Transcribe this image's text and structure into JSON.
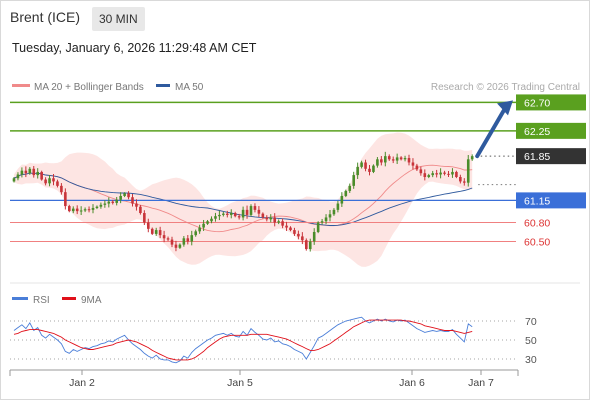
{
  "header": {
    "instrument": "Brent (ICE)",
    "timeframe": "30 MIN",
    "datetime": "Tuesday, January 6, 2026 11:29:48 AM CET"
  },
  "legend": {
    "ma20": "MA 20 + Bollinger Bands",
    "ma50": "MA 50",
    "credit": "Research © 2026 Trading Central",
    "rsi": "RSI",
    "ma9": "9MA"
  },
  "colors": {
    "bollinger_fill": "#fde0de",
    "ma20_line": "#f08a8a",
    "ma50_line": "#2f5a9e",
    "resistance": "#5aa01f",
    "support_blue": "#3a6fd8",
    "support_red": "#f08080",
    "price_box": "#333333",
    "rsi_line": "#4a7ed8",
    "rsi_ma": "#e0101a",
    "candle_up": "#4a8c2a",
    "candle_down": "#c8343a"
  },
  "chart_data": [
    {
      "type": "candlestick",
      "x_ticks": [
        "Jan 2",
        "Jan 5",
        "Jan 6",
        "Jan 7"
      ],
      "y_range": [
        60.27,
        62.77
      ],
      "levels": [
        {
          "value": 62.7,
          "label": "62.70",
          "kind": "resistance"
        },
        {
          "value": 62.25,
          "label": "62.25",
          "kind": "resistance"
        },
        {
          "value": 61.85,
          "label": "61.85",
          "kind": "last-price"
        },
        {
          "value": 61.15,
          "label": "61.15",
          "kind": "support"
        },
        {
          "value": 60.8,
          "label": "60.80",
          "kind": "support"
        },
        {
          "value": 60.5,
          "label": "60.50",
          "kind": "support"
        }
      ],
      "close": [
        61.5,
        61.56,
        61.62,
        61.58,
        61.65,
        61.55,
        61.6,
        61.48,
        61.42,
        61.5,
        61.45,
        61.38,
        61.28,
        61.06,
        60.98,
        61.02,
        60.98,
        60.99,
        61.01,
        61.0,
        61.03,
        61.05,
        61.08,
        61.1,
        61.13,
        61.11,
        61.16,
        61.22,
        61.26,
        61.2,
        61.1,
        61.05,
        60.95,
        60.8,
        60.7,
        60.62,
        60.68,
        60.6,
        60.55,
        60.53,
        60.45,
        60.4,
        60.45,
        60.55,
        60.5,
        60.6,
        60.66,
        60.72,
        60.78,
        60.82,
        60.86,
        60.9,
        60.92,
        60.94,
        60.92,
        60.95,
        60.9,
        60.88,
        61.0,
        60.92,
        61.06,
        61.0,
        60.94,
        60.88,
        60.85,
        60.88,
        60.8,
        60.82,
        60.75,
        60.72,
        60.68,
        60.62,
        60.58,
        60.52,
        60.38,
        60.5,
        60.65,
        60.8,
        60.82,
        60.88,
        60.93,
        61.0,
        61.1,
        61.22,
        61.3,
        61.38,
        61.55,
        61.68,
        61.75,
        61.65,
        61.6,
        61.7,
        61.8,
        61.75,
        61.85,
        61.8,
        61.78,
        61.83,
        61.8,
        61.82,
        61.75,
        61.7,
        61.64,
        61.58,
        61.52,
        61.55,
        61.58,
        61.56,
        61.59,
        61.57,
        61.56,
        61.6,
        61.52,
        61.45,
        61.43,
        61.8,
        61.85
      ],
      "rsi": {
        "ticks": [
          70,
          50,
          30
        ],
        "values": [
          60,
          63,
          66,
          62,
          68,
          60,
          63,
          55,
          52,
          56,
          53,
          50,
          46,
          38,
          36,
          40,
          38,
          40,
          42,
          41,
          43,
          44,
          46,
          47,
          49,
          48,
          51,
          53,
          55,
          50,
          46,
          43,
          40,
          36,
          33,
          31,
          34,
          30,
          29,
          29,
          27,
          26,
          28,
          33,
          31,
          37,
          41,
          44,
          47,
          50,
          52,
          55,
          56,
          57,
          55,
          57,
          54,
          53,
          59,
          55,
          62,
          58,
          55,
          51,
          50,
          52,
          48,
          49,
          46,
          45,
          43,
          40,
          38,
          36,
          30,
          37,
          44,
          52,
          54,
          57,
          60,
          63,
          66,
          68,
          70,
          71,
          72,
          73,
          74,
          70,
          68,
          70,
          72,
          70,
          72,
          70,
          69,
          71,
          70,
          71,
          68,
          65,
          62,
          60,
          58,
          59,
          60,
          59,
          60,
          59,
          59,
          61,
          56,
          52,
          48,
          67,
          64
        ],
        "ma9": [
          56,
          57,
          59,
          60,
          61,
          61,
          61,
          60,
          59,
          58,
          57,
          55,
          53,
          50,
          48,
          46,
          44,
          42,
          41,
          40,
          40,
          41,
          42,
          43,
          44,
          45,
          47,
          48,
          49,
          50,
          49,
          48,
          46,
          44,
          42,
          39,
          37,
          35,
          33,
          31,
          30,
          29,
          29,
          29,
          29,
          30,
          32,
          35,
          38,
          42,
          45,
          48,
          51,
          53,
          54,
          55,
          55,
          55,
          55,
          55,
          56,
          56,
          56,
          56,
          56,
          55,
          54,
          53,
          52,
          51,
          49,
          47,
          45,
          43,
          41,
          39,
          39,
          40,
          42,
          44,
          46,
          49,
          52,
          55,
          58,
          61,
          64,
          66,
          68,
          70,
          71,
          71,
          71,
          71,
          71,
          71,
          71,
          71,
          71,
          70,
          70,
          69,
          68,
          67,
          65,
          64,
          63,
          62,
          61,
          60,
          60,
          60,
          59,
          58,
          57,
          58,
          59
        ]
      }
    }
  ]
}
